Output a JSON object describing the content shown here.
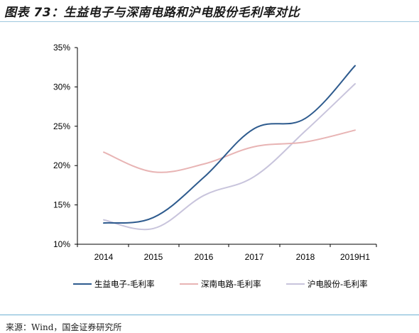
{
  "title": "图表 73：生益电子与深南电路和沪电股份毛利率对比",
  "source": "来源：Wind，国金证券研究所",
  "chart_data": {
    "type": "line",
    "title": "",
    "xlabel": "",
    "ylabel": "",
    "categories": [
      "2014",
      "2015",
      "2016",
      "2017",
      "2018",
      "2019H1"
    ],
    "ylim": [
      10,
      35
    ],
    "yticks": [
      "10%",
      "15%",
      "20%",
      "25%",
      "30%",
      "35%"
    ],
    "grid": false,
    "legend_position": "bottom",
    "series": [
      {
        "name": "生益电子-毛利率",
        "color": "#2e5b8e",
        "values": [
          12.7,
          13.4,
          18.5,
          24.7,
          26.0,
          32.7
        ]
      },
      {
        "name": "深南电路-毛利率",
        "color": "#e8b4b4",
        "values": [
          21.7,
          19.2,
          20.2,
          22.4,
          23.0,
          24.5
        ]
      },
      {
        "name": "沪电股份-毛利率",
        "color": "#c8c4dc",
        "values": [
          13.1,
          12.0,
          16.2,
          18.6,
          24.4,
          30.4
        ]
      }
    ]
  }
}
